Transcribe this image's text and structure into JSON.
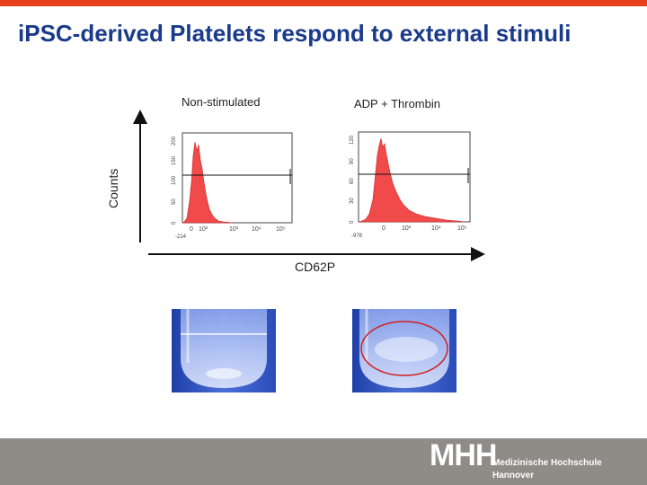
{
  "slide": {
    "title": "iPSC-derived Platelets respond to external stimuli"
  },
  "panels": {
    "left_label": "Non-stimulated",
    "right_label": "ADP + Thrombin",
    "y_axis_label": "Counts",
    "x_axis_label": "CD62P"
  },
  "histogram_left": {
    "y_ticks": [
      "0",
      "50",
      "100",
      "150",
      "200"
    ],
    "x_ticks": [
      "-214",
      "0",
      "10²",
      "10³",
      "10⁴",
      "10⁵"
    ]
  },
  "histogram_right": {
    "y_ticks": [
      "0",
      "30",
      "60",
      "90",
      "120"
    ],
    "x_ticks": [
      "-978",
      "0",
      "10³",
      "10⁴",
      "10⁵"
    ]
  },
  "footer": {
    "logo_mark": "MHH",
    "institution_line1": "Medizinische Hochschule",
    "institution_line2": "Hannover"
  },
  "colors": {
    "accent_bar": "#e8401c",
    "title": "#1a3a8a",
    "histogram_fill": "#f04a4a",
    "footer": "#8f8b87"
  }
}
